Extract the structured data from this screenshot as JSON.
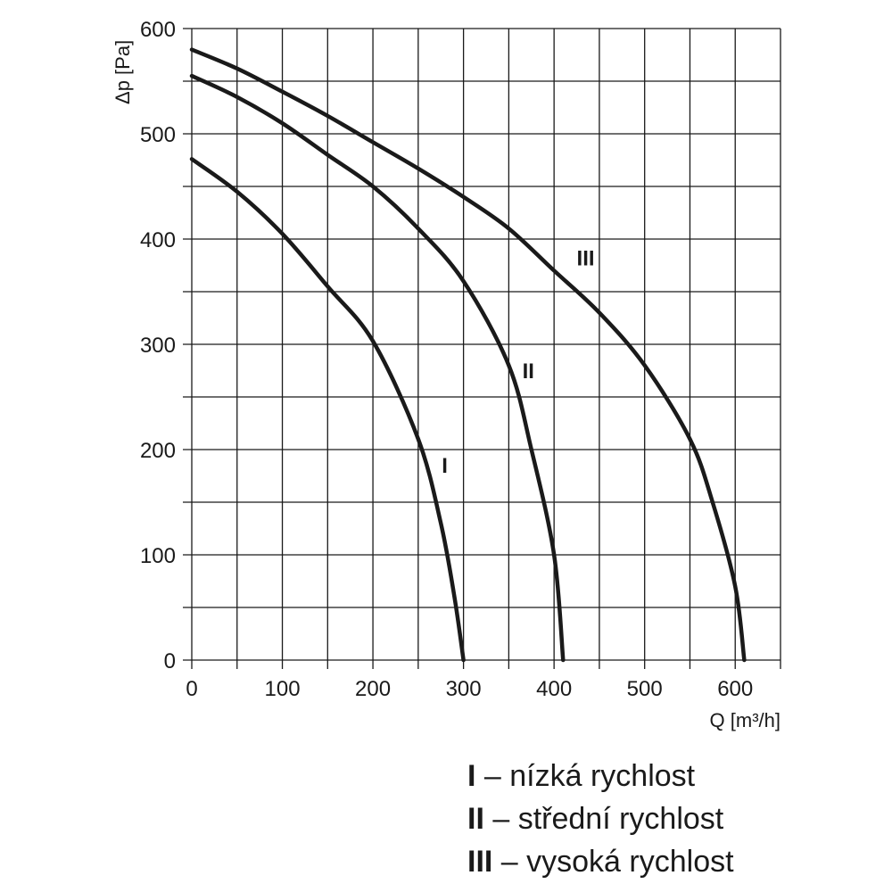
{
  "chart_data": {
    "type": "line",
    "xlabel": "Q [m³/h]",
    "ylabel": "Δp [Pa]",
    "xlim": [
      0,
      650
    ],
    "ylim": [
      0,
      600
    ],
    "xticks": [
      "0",
      "100",
      "200",
      "300",
      "400",
      "500",
      "600"
    ],
    "yticks": [
      "0",
      "100",
      "200",
      "300",
      "400",
      "500",
      "600"
    ],
    "grid": true,
    "line_color": "#1a1a1a",
    "series": [
      {
        "name": "I",
        "x": [
          0,
          50,
          100,
          150,
          200,
          250,
          275,
          290,
          300
        ],
        "y": [
          476,
          445,
          405,
          355,
          303,
          210,
          130,
          60,
          0
        ]
      },
      {
        "name": "II",
        "x": [
          0,
          50,
          100,
          150,
          200,
          250,
          300,
          350,
          375,
          400,
          410
        ],
        "y": [
          555,
          535,
          510,
          480,
          450,
          410,
          360,
          280,
          200,
          100,
          0
        ]
      },
      {
        "name": "III",
        "x": [
          0,
          50,
          100,
          150,
          200,
          250,
          300,
          350,
          400,
          450,
          500,
          550,
          575,
          600,
          610
        ],
        "y": [
          580,
          562,
          540,
          517,
          492,
          467,
          440,
          410,
          370,
          330,
          280,
          210,
          150,
          70,
          0
        ]
      }
    ]
  },
  "legend": [
    {
      "key": "I",
      "text": " – nízká rychlost"
    },
    {
      "key": "II",
      "text": " – střední rychlost"
    },
    {
      "key": "III",
      "text": " – vysoká rychlost"
    }
  ]
}
